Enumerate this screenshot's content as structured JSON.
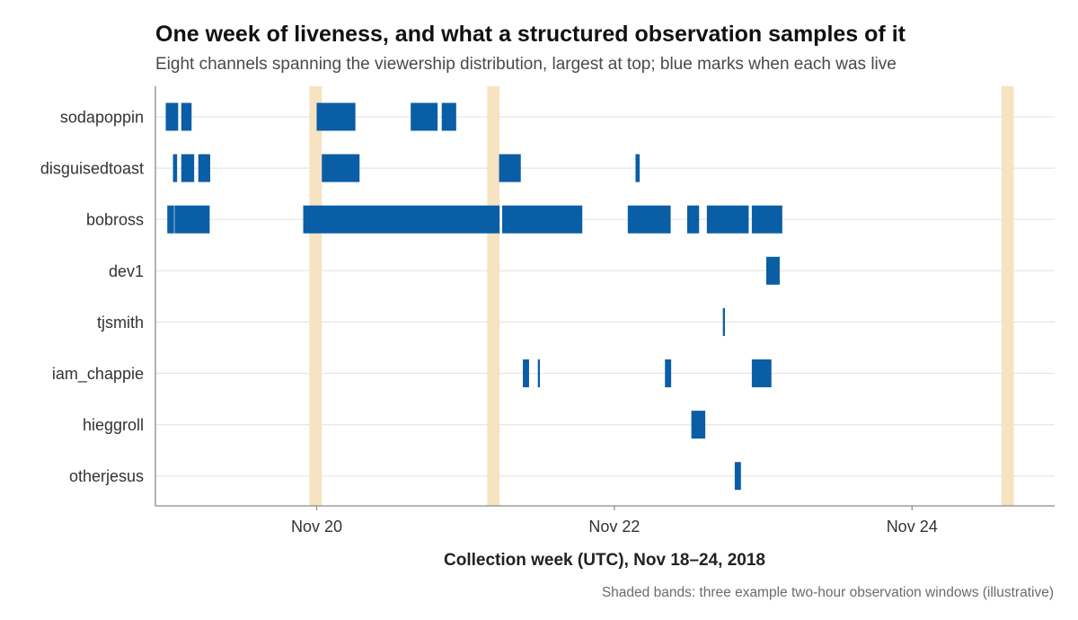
{
  "chart_data": {
    "type": "timeline",
    "title": "One week of liveness, and what a structured observation samples of it",
    "subtitle": "Eight channels spanning the viewership distribution, largest at top; blue marks when each was live",
    "xlabel": "Collection week (UTC), Nov 18–24, 2018",
    "caption": "Shaded bands: three example two-hour observation windows (illustrative)",
    "x_unit": "days",
    "xlim": [
      "2018-11-18T22:00",
      "2018-11-24T23:00"
    ],
    "x_ticks": [
      {
        "value": "2018-11-20T00:00",
        "label": "Nov 20"
      },
      {
        "value": "2018-11-22T00:00",
        "label": "Nov 22"
      },
      {
        "value": "2018-11-24T00:00",
        "label": "Nov 24"
      }
    ],
    "grid": "horizontal",
    "colors": {
      "live": "#0a5ea6",
      "window": "#f6e3c1"
    },
    "observation_windows": [
      {
        "start": "2018-11-19T22:50",
        "end": "2018-11-20T00:50"
      },
      {
        "start": "2018-11-21T03:30",
        "end": "2018-11-21T05:30"
      },
      {
        "start": "2018-11-24T14:25",
        "end": "2018-11-24T16:25"
      }
    ],
    "channels": [
      {
        "name": "sodapoppin",
        "live": [
          [
            "2018-11-18T23:40",
            "2018-11-19T01:40"
          ],
          [
            "2018-11-19T02:10",
            "2018-11-19T03:50"
          ],
          [
            "2018-11-20T00:00",
            "2018-11-20T06:15"
          ],
          [
            "2018-11-20T15:10",
            "2018-11-20T19:30"
          ],
          [
            "2018-11-20T20:10",
            "2018-11-20T22:30"
          ]
        ]
      },
      {
        "name": "disguisedtoast",
        "live": [
          [
            "2018-11-19T00:50",
            "2018-11-19T01:30"
          ],
          [
            "2018-11-19T02:10",
            "2018-11-19T04:15"
          ],
          [
            "2018-11-19T04:55",
            "2018-11-19T06:50"
          ],
          [
            "2018-11-20T00:50",
            "2018-11-20T06:55"
          ],
          [
            "2018-11-21T05:25",
            "2018-11-21T08:55"
          ],
          [
            "2018-11-22T03:25",
            "2018-11-22T04:05"
          ]
        ]
      },
      {
        "name": "bobross",
        "live": [
          [
            "2018-11-18T23:55",
            "2018-11-19T01:00"
          ],
          [
            "2018-11-19T01:05",
            "2018-11-19T06:45"
          ],
          [
            "2018-11-19T21:50",
            "2018-11-21T05:30"
          ],
          [
            "2018-11-21T05:55",
            "2018-11-21T18:50"
          ],
          [
            "2018-11-22T02:10",
            "2018-11-22T09:05"
          ],
          [
            "2018-11-22T11:45",
            "2018-11-22T13:40"
          ],
          [
            "2018-11-22T14:55",
            "2018-11-22T21:40"
          ],
          [
            "2018-11-22T22:10",
            "2018-11-23T03:05"
          ]
        ]
      },
      {
        "name": "dev1",
        "live": [
          [
            "2018-11-23T00:30",
            "2018-11-23T02:40"
          ]
        ]
      },
      {
        "name": "tjsmith",
        "live": [
          [
            "2018-11-22T17:30",
            "2018-11-22T17:50"
          ]
        ]
      },
      {
        "name": "iam_chappie",
        "live": [
          [
            "2018-11-21T09:15",
            "2018-11-21T10:15"
          ],
          [
            "2018-11-21T11:40",
            "2018-11-21T12:00"
          ],
          [
            "2018-11-22T08:10",
            "2018-11-22T09:10"
          ],
          [
            "2018-11-22T22:10",
            "2018-11-23T01:20"
          ]
        ]
      },
      {
        "name": "hieggroll",
        "live": [
          [
            "2018-11-22T12:25",
            "2018-11-22T14:40"
          ]
        ]
      },
      {
        "name": "otherjesus",
        "live": [
          [
            "2018-11-22T19:25",
            "2018-11-22T20:25"
          ]
        ]
      }
    ]
  }
}
